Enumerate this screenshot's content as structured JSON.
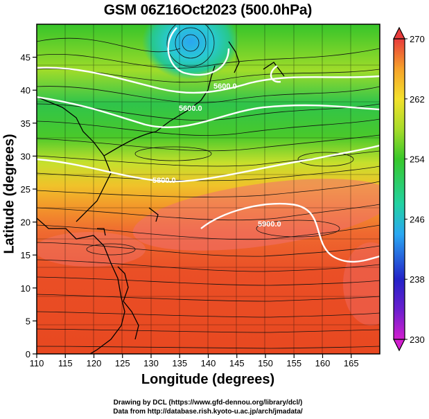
{
  "title": "GSM 06Z16Oct2023 (500.0hPa)",
  "axes": {
    "xlabel": "Longitude (degrees)",
    "ylabel": "Latitude  (degrees)",
    "x_ticks": [
      "110",
      "115",
      "120",
      "125",
      "130",
      "135",
      "140",
      "145",
      "150",
      "155",
      "160",
      "165"
    ],
    "y_ticks": [
      "0",
      "5",
      "10",
      "15",
      "20",
      "25",
      "30",
      "35",
      "40",
      "45"
    ],
    "x_range": [
      110,
      170
    ],
    "y_range": [
      0,
      50
    ]
  },
  "colorbar": {
    "ticks": [
      "230",
      "238",
      "246",
      "254",
      "262",
      "270"
    ],
    "range": [
      230,
      270
    ],
    "colors": [
      "#d21fcf",
      "#2323c8",
      "#2aa8f2",
      "#22d2a2",
      "#38c82a",
      "#a8dc2a",
      "#f3e12c",
      "#f6a22a",
      "#ef5a20",
      "#e83c3c"
    ]
  },
  "contours": [
    {
      "label": "5600.0"
    },
    {
      "label": "5600.0"
    },
    {
      "label": "5800.0"
    },
    {
      "label": "5900.0"
    }
  ],
  "credits": {
    "line1": "Drawing by DCL (https://www.gfd-dennou.org/library/dcl/)",
    "line2": "Data from http://database.rish.kyoto-u.ac.jp/arch/jmadata/"
  }
}
